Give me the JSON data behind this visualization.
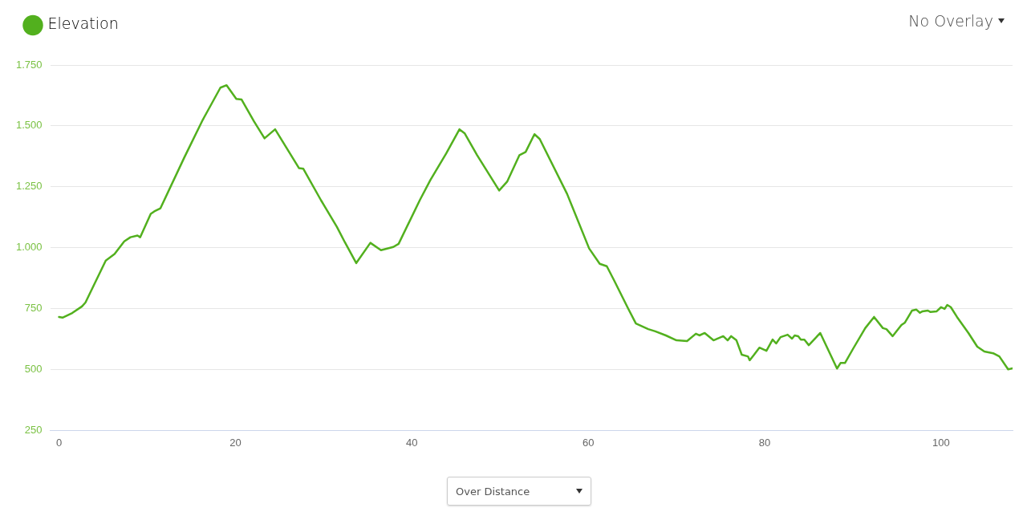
{
  "chart_data": {
    "type": "line",
    "x": [
      0,
      0.4,
      1.5,
      2.6,
      3.0,
      5.3,
      6.3,
      7.4,
      8.1,
      8.9,
      9.2,
      10.4,
      10.8,
      11.5,
      14.2,
      16.3,
      18.3,
      19.0,
      20.1,
      20.7,
      22.1,
      23.3,
      24.5,
      27.2,
      27.7,
      29.7,
      31.5,
      32.4,
      33.7,
      35.3,
      36.5,
      37.9,
      38.5,
      40.9,
      42.1,
      43.9,
      45.4,
      46.0,
      47.4,
      49.9,
      50.8,
      52.2,
      52.9,
      53.9,
      54.5,
      57.6,
      60.1,
      61.3,
      62.1,
      62.9,
      64.5,
      65.4,
      66.8,
      67.6,
      68.8,
      70.0,
      71.2,
      72.2,
      72.6,
      73.2,
      74.2,
      75.3,
      75.8,
      76.2,
      76.8,
      77.4,
      78.1,
      78.3,
      78.8,
      79.4,
      80.2,
      80.9,
      81.3,
      81.8,
      82.6,
      83.1,
      83.4,
      83.8,
      84.1,
      84.5,
      85.0,
      85.6,
      86.3,
      88.2,
      88.6,
      89.1,
      90.0,
      91.4,
      92.4,
      93.4,
      93.8,
      94.5,
      95.5,
      95.9,
      96.7,
      97.2,
      97.6,
      97.9,
      98.5,
      98.8,
      99.5,
      100.0,
      100.4,
      100.7,
      101.1,
      101.8,
      103.1,
      104.1,
      104.9,
      105.9,
      106.6,
      107.6,
      108.1
    ],
    "series": [
      {
        "name": "Elevation",
        "color": "#52b01e",
        "values": [
          716,
          713,
          732,
          759,
          775,
          947,
          974,
          1026,
          1043,
          1050,
          1043,
          1139,
          1149,
          1162,
          1370,
          1525,
          1657,
          1667,
          1611,
          1608,
          1519,
          1449,
          1486,
          1327,
          1324,
          1195,
          1086,
          1023,
          937,
          1020,
          990,
          1003,
          1016,
          1195,
          1278,
          1387,
          1486,
          1469,
          1380,
          1235,
          1271,
          1380,
          1393,
          1466,
          1446,
          1221,
          997,
          934,
          924,
          868,
          752,
          689,
          666,
          657,
          640,
          620,
          617,
          647,
          640,
          650,
          620,
          637,
          620,
          637,
          620,
          561,
          554,
          538,
          561,
          590,
          577,
          623,
          607,
          633,
          643,
          627,
          640,
          637,
          623,
          623,
          600,
          623,
          650,
          504,
          527,
          527,
          584,
          670,
          716,
          670,
          666,
          637,
          683,
          693,
          742,
          746,
          733,
          739,
          742,
          736,
          739,
          756,
          749,
          765,
          756,
          716,
          650,
          594,
          574,
          567,
          554,
          501,
          505
        ]
      }
    ],
    "xlim": [
      -1,
      108.1
    ],
    "xticks": [
      0,
      20,
      40,
      60,
      80,
      100
    ],
    "ylim": [
      250,
      1750
    ],
    "yticks": [
      {
        "value": 250,
        "label": "250"
      },
      {
        "value": 500,
        "label": "500"
      },
      {
        "value": 750,
        "label": "750"
      },
      {
        "value": 1000,
        "label": "1.000"
      },
      {
        "value": 1250,
        "label": "1.250"
      },
      {
        "value": 1500,
        "label": "1.500"
      },
      {
        "value": 1750,
        "label": "1.750"
      }
    ],
    "grid": "y",
    "legend": "top left",
    "marker": "none",
    "line_style": "solid",
    "annotations": [
      "No Overlay",
      "Over Distance"
    ]
  }
}
